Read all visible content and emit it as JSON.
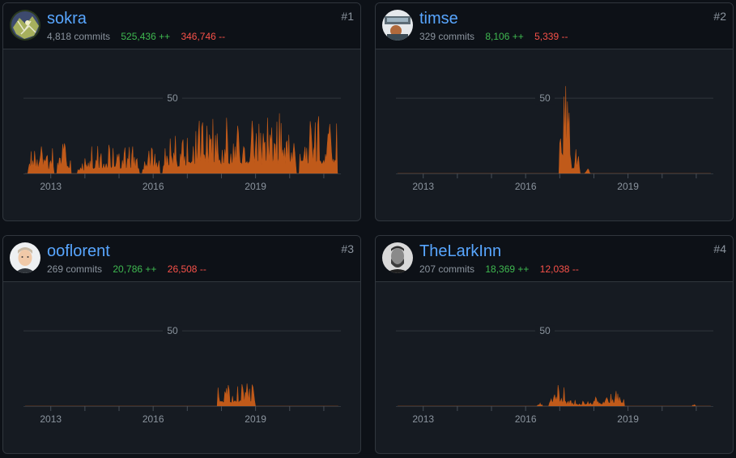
{
  "colors": {
    "background": "#0d1117",
    "card": "#161b22",
    "border": "#30363d",
    "link": "#58a6ff",
    "additions": "#3fb950",
    "deletions": "#f85149",
    "area_fill": "#c05a1a",
    "muted": "#8b949e"
  },
  "contributors": [
    {
      "username": "sokra",
      "commits": "4,818 commits",
      "additions": "525,436 ++",
      "deletions": "346,746 --",
      "rank": "#1",
      "avatar_icon": "sokra-avatar",
      "chart_data": {
        "type": "area",
        "xlabel": "",
        "ylabel": "",
        "ylim": [
          0,
          70
        ],
        "y_ticks": [
          50
        ],
        "y_tick_labels": [
          "50"
        ],
        "x_tick_labels": [
          "2013",
          "2016",
          "2019"
        ],
        "x_range": [
          2012.2,
          2021.5
        ],
        "bursts": [
          {
            "x": [
              2012.35,
              2013.1
            ],
            "peak": 18
          },
          {
            "x": [
              2013.2,
              2013.6
            ],
            "peak": 20
          },
          {
            "x": [
              2013.8,
              2014.2
            ],
            "peak": 10
          },
          {
            "x": [
              2014.2,
              2015.2
            ],
            "peak": 19
          },
          {
            "x": [
              2015.2,
              2015.6
            ],
            "peak": 18
          },
          {
            "x": [
              2015.7,
              2016.2
            ],
            "peak": 17
          },
          {
            "x": [
              2016.3,
              2017.0
            ],
            "peak": 25
          },
          {
            "x": [
              2017.0,
              2017.7
            ],
            "peak": 35
          },
          {
            "x": [
              2017.7,
              2018.6
            ],
            "peak": 37
          },
          {
            "x": [
              2018.6,
              2019.2
            ],
            "peak": 35
          },
          {
            "x": [
              2019.2,
              2020.2
            ],
            "peak": 40
          },
          {
            "x": [
              2020.3,
              2021.4
            ],
            "peak": 38
          }
        ],
        "series": [
          {
            "values": [
              0,
              6,
              18,
              9,
              14,
              4,
              20,
              8,
              3,
              2,
              10,
              16,
              19,
              11,
              7,
              13,
              15,
              9,
              6,
              18,
              12,
              8,
              14,
              5,
              17,
              4,
              11,
              9,
              2,
              25,
              18,
              14,
              22,
              7,
              35,
              20,
              16,
              26,
              11,
              34,
              28,
              24,
              18,
              37,
              22,
              16,
              30,
              14,
              35,
              24,
              11,
              6,
              19,
              29,
              38,
              21,
              12,
              40,
              30,
              18,
              10,
              26,
              33,
              22,
              16,
              38,
              28,
              18,
              30,
              24
            ]
          }
        ]
      }
    },
    {
      "username": "timse",
      "commits": "329 commits",
      "additions": "8,106 ++",
      "deletions": "5,339 --",
      "rank": "#2",
      "avatar_icon": "timse-avatar",
      "chart_data": {
        "type": "area",
        "xlabel": "",
        "ylabel": "",
        "ylim": [
          0,
          70
        ],
        "y_ticks": [
          50
        ],
        "y_tick_labels": [
          "50"
        ],
        "x_tick_labels": [
          "2013",
          "2016",
          "2019"
        ],
        "x_range": [
          2012.2,
          2021.5
        ],
        "bursts": [
          {
            "x": [
              2017.0,
              2017.35
            ],
            "peak": 58
          },
          {
            "x": [
              2017.35,
              2017.6
            ],
            "peak": 16
          },
          {
            "x": [
              2017.75,
              2017.9
            ],
            "peak": 3
          }
        ],
        "series": [
          {
            "values": [
              0,
              8,
              20,
              58,
              40,
              14,
              8,
              3,
              10,
              16,
              4,
              0,
              0,
              2,
              0
            ]
          }
        ]
      }
    },
    {
      "username": "ooflorent",
      "commits": "269 commits",
      "additions": "20,786 ++",
      "deletions": "26,508 --",
      "rank": "#3",
      "avatar_icon": "ooflorent-avatar",
      "chart_data": {
        "type": "area",
        "xlabel": "",
        "ylabel": "",
        "ylim": [
          0,
          70
        ],
        "y_ticks": [
          50
        ],
        "y_tick_labels": [
          "50"
        ],
        "x_tick_labels": [
          "2013",
          "2016",
          "2019"
        ],
        "x_range": [
          2012.2,
          2021.5
        ],
        "bursts": [
          {
            "x": [
              2017.9,
              2018.5
            ],
            "peak": 14
          },
          {
            "x": [
              2018.5,
              2019.0
            ],
            "peak": 15
          }
        ],
        "series": [
          {
            "values": [
              0,
              8,
              12,
              4,
              10,
              14,
              6,
              9,
              12,
              2,
              11,
              15,
              8,
              13,
              2,
              0
            ]
          }
        ]
      }
    },
    {
      "username": "TheLarkInn",
      "commits": "207 commits",
      "additions": "18,369 ++",
      "deletions": "12,038 --",
      "rank": "#4",
      "avatar_icon": "thelarkinn-avatar",
      "chart_data": {
        "type": "area",
        "xlabel": "",
        "ylabel": "",
        "ylim": [
          0,
          70
        ],
        "y_ticks": [
          50
        ],
        "y_tick_labels": [
          "50"
        ],
        "x_tick_labels": [
          "2013",
          "2016",
          "2019"
        ],
        "x_range": [
          2012.2,
          2021.5
        ],
        "bursts": [
          {
            "x": [
              2016.35,
              2016.5
            ],
            "peak": 2
          },
          {
            "x": [
              2016.7,
              2017.2
            ],
            "peak": 14
          },
          {
            "x": [
              2017.2,
              2017.7
            ],
            "peak": 4
          },
          {
            "x": [
              2017.7,
              2018.4
            ],
            "peak": 6
          },
          {
            "x": [
              2018.4,
              2018.9
            ],
            "peak": 10
          },
          {
            "x": [
              2020.9,
              2021.0
            ],
            "peak": 1
          }
        ],
        "series": [
          {
            "values": [
              0,
              2,
              0,
              6,
              14,
              9,
              12,
              3,
              1,
              4,
              2,
              3,
              0,
              5,
              6,
              2,
              4,
              1,
              8,
              10,
              3,
              1,
              0,
              1,
              0
            ]
          }
        ]
      }
    }
  ]
}
